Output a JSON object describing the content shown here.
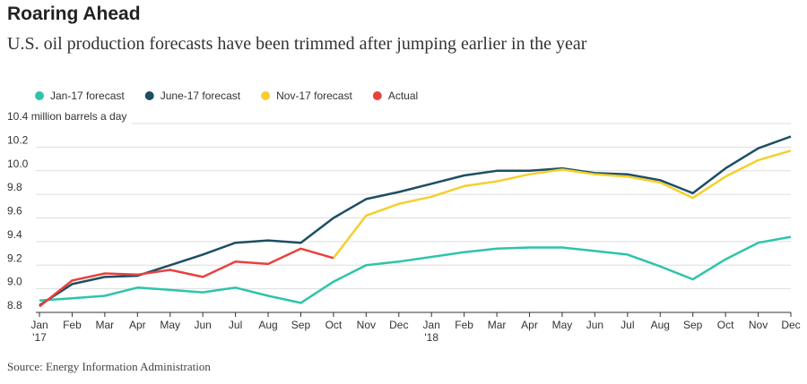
{
  "chart_data": {
    "type": "line",
    "title": "Roaring Ahead",
    "subtitle": "U.S. oil production forecasts have been trimmed after jumping earlier in the year",
    "source": "Source: Energy Information Administration",
    "categories": [
      "Jan\n'17",
      "Feb",
      "Mar",
      "Apr",
      "May",
      "Jun",
      "Jul",
      "Aug",
      "Sep",
      "Oct",
      "Nov",
      "Dec",
      "Jan\n'18",
      "Feb",
      "Mar",
      "Apr",
      "May",
      "Jun",
      "Jul",
      "Aug",
      "Sep",
      "Oct",
      "Nov",
      "Dec"
    ],
    "series": [
      {
        "name": "Jan-17 forecast",
        "color": "#2ec4a9",
        "values": [
          8.9,
          8.92,
          8.94,
          9.01,
          8.99,
          8.97,
          9.01,
          8.94,
          8.88,
          9.06,
          9.2,
          9.23,
          9.27,
          9.31,
          9.34,
          9.35,
          9.35,
          9.32,
          9.29,
          9.19,
          9.08,
          9.25,
          9.39,
          9.44
        ]
      },
      {
        "name": "June-17 forecast",
        "color": "#1d4e63",
        "values": [
          8.86,
          9.04,
          9.1,
          9.11,
          9.2,
          9.29,
          9.39,
          9.41,
          9.39,
          9.6,
          9.76,
          9.82,
          9.89,
          9.96,
          10.0,
          10.0,
          10.02,
          9.98,
          9.97,
          9.92,
          9.81,
          10.02,
          10.19,
          10.29
        ]
      },
      {
        "name": "Nov-17 forecast",
        "color": "#f5cf2e",
        "values": [
          null,
          null,
          null,
          null,
          null,
          null,
          null,
          null,
          null,
          9.26,
          9.62,
          9.72,
          9.78,
          9.87,
          9.91,
          9.97,
          10.01,
          9.97,
          9.95,
          9.9,
          9.77,
          9.95,
          10.09,
          10.17
        ]
      },
      {
        "name": "Actual",
        "color": "#e8423f",
        "values": [
          8.85,
          9.07,
          9.13,
          9.12,
          9.16,
          9.1,
          9.23,
          9.21,
          9.34,
          9.26,
          null,
          null,
          null,
          null,
          null,
          null,
          null,
          null,
          null,
          null,
          null,
          null,
          null,
          null
        ]
      }
    ],
    "ylim": [
      8.8,
      10.4
    ],
    "yticks": [
      {
        "value": 8.8,
        "label": "8.8"
      },
      {
        "value": 9,
        "label": "9.0"
      },
      9.2,
      9.4,
      9.6,
      9.8,
      {
        "value": 10,
        "label": "10.0"
      },
      10.2,
      {
        "value": 10.4,
        "label": "10.4 million barrels a day"
      }
    ],
    "grid": true
  }
}
